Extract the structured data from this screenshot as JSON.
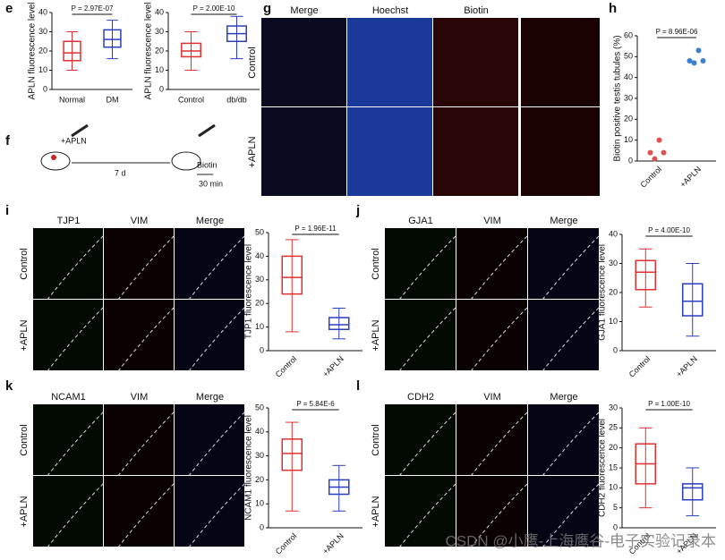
{
  "panel_labels": [
    "e",
    "f",
    "g",
    "h",
    "i",
    "j",
    "k",
    "l"
  ],
  "schematic": {
    "labels": [
      "+APLN",
      "7 d",
      "Biotin",
      "30 min"
    ]
  },
  "images": [
    {
      "columns": [
        "Merge",
        "Hoechst",
        "Biotin"
      ],
      "column_colors": [
        "#333333",
        "#2a3fbf",
        "#d02020"
      ],
      "rows": [
        "Control",
        "+APLN"
      ]
    },
    {
      "columns": [
        "TJP1",
        "VIM",
        "Merge"
      ],
      "column_colors": [
        "#1aa01a",
        "#d02020",
        "#111111"
      ],
      "rows": [
        "Control",
        "+APLN"
      ]
    },
    {
      "columns": [
        "GJA1",
        "VIM",
        "Merge"
      ],
      "column_colors": [
        "#1aa01a",
        "#d02020",
        "#111111"
      ],
      "rows": [
        "Control",
        "+APLN"
      ]
    },
    {
      "columns": [
        "NCAM1",
        "VIM",
        "Merge"
      ],
      "column_colors": [
        "#1aa01a",
        "#d02020",
        "#111111"
      ],
      "rows": [
        "Control",
        "+APLN"
      ]
    },
    {
      "columns": [
        "CDH2",
        "VIM",
        "Merge"
      ],
      "column_colors": [
        "#1aa01a",
        "#d02020",
        "#111111"
      ],
      "rows": [
        "Control",
        "+APLN"
      ]
    }
  ],
  "chart_data": [
    {
      "type": "box",
      "ylabel": "APLN fluorescence level",
      "annotation": "P = 2.97E-07",
      "categories": [
        "Normal",
        "DM"
      ],
      "colors": [
        "#e03030",
        "#2a3fbf"
      ],
      "ylim": [
        0,
        40
      ],
      "yticks": [
        0,
        10,
        20,
        30,
        40
      ],
      "boxes": [
        {
          "min": 10,
          "q1": 15,
          "median": 19,
          "q3": 25,
          "max": 30
        },
        {
          "min": 16,
          "q1": 22,
          "median": 26,
          "q3": 31,
          "max": 36
        }
      ]
    },
    {
      "type": "box",
      "ylabel": "APLN fluorescence level",
      "annotation": "P = 2.00E-10",
      "categories": [
        "Control",
        "db/db"
      ],
      "colors": [
        "#e03030",
        "#2a3fbf"
      ],
      "ylim": [
        0,
        40
      ],
      "yticks": [
        0,
        10,
        20,
        30,
        40
      ],
      "boxes": [
        {
          "min": 10,
          "q1": 17,
          "median": 20,
          "q3": 24,
          "max": 30
        },
        {
          "min": 16,
          "q1": 25,
          "median": 29,
          "q3": 33,
          "max": 38
        }
      ]
    },
    {
      "type": "scatter",
      "ylabel": "Biotin positive testis tubules (%)",
      "annotation": "P = 8.96E-06",
      "categories": [
        "Control",
        "+APLN"
      ],
      "colors": [
        "#e05050",
        "#3a7fd0"
      ],
      "ylim": [
        0,
        60
      ],
      "yticks": [
        0,
        10,
        20,
        30,
        40,
        50,
        60
      ],
      "points": [
        [
          4,
          1,
          10,
          4
        ],
        [
          48,
          47,
          53,
          48
        ]
      ]
    },
    {
      "type": "box",
      "ylabel": "TJP1 fluorescence level",
      "annotation": "P = 1.96E-11",
      "categories": [
        "Control",
        "+APLN"
      ],
      "colors": [
        "#e03030",
        "#2a3fbf"
      ],
      "ylim": [
        0,
        50
      ],
      "yticks": [
        0,
        10,
        20,
        30,
        40,
        50
      ],
      "boxes": [
        {
          "min": 8,
          "q1": 24,
          "median": 31,
          "q3": 40,
          "max": 47
        },
        {
          "min": 5,
          "q1": 9,
          "median": 11,
          "q3": 14,
          "max": 18
        }
      ]
    },
    {
      "type": "box",
      "ylabel": "GJA1 fluorescence level",
      "annotation": "P = 4.00E-10",
      "categories": [
        "Control",
        "+APLN"
      ],
      "colors": [
        "#e03030",
        "#2a3fbf"
      ],
      "ylim": [
        0,
        40
      ],
      "yticks": [
        0,
        10,
        20,
        30,
        40
      ],
      "boxes": [
        {
          "min": 15,
          "q1": 21,
          "median": 27,
          "q3": 31,
          "max": 35
        },
        {
          "min": 5,
          "q1": 12,
          "median": 17,
          "q3": 23,
          "max": 30
        }
      ]
    },
    {
      "type": "box",
      "ylabel": "NCAM1 fluorescence level",
      "annotation": "P = 5.84E-6",
      "categories": [
        "Control",
        "+APLN"
      ],
      "colors": [
        "#e03030",
        "#2a3fbf"
      ],
      "ylim": [
        0,
        50
      ],
      "yticks": [
        0,
        10,
        20,
        30,
        40,
        50
      ],
      "boxes": [
        {
          "min": 7,
          "q1": 24,
          "median": 31,
          "q3": 37,
          "max": 44
        },
        {
          "min": 7,
          "q1": 14,
          "median": 17,
          "q3": 20,
          "max": 26
        }
      ]
    },
    {
      "type": "box",
      "ylabel": "CDH2 fluorescence level",
      "annotation": "P = 1.00E-10",
      "categories": [
        "Control",
        "+APLN"
      ],
      "colors": [
        "#e03030",
        "#2a3fbf"
      ],
      "ylim": [
        0,
        30
      ],
      "yticks": [
        0,
        5,
        10,
        15,
        20,
        25,
        30
      ],
      "boxes": [
        {
          "min": 5,
          "q1": 11,
          "median": 16,
          "q3": 21,
          "max": 25
        },
        {
          "min": 3,
          "q1": 7,
          "median": 10,
          "q3": 11,
          "max": 15
        }
      ]
    }
  ],
  "watermark": "CSDN @小鹰-上海鹰谷-电子实验记录本"
}
